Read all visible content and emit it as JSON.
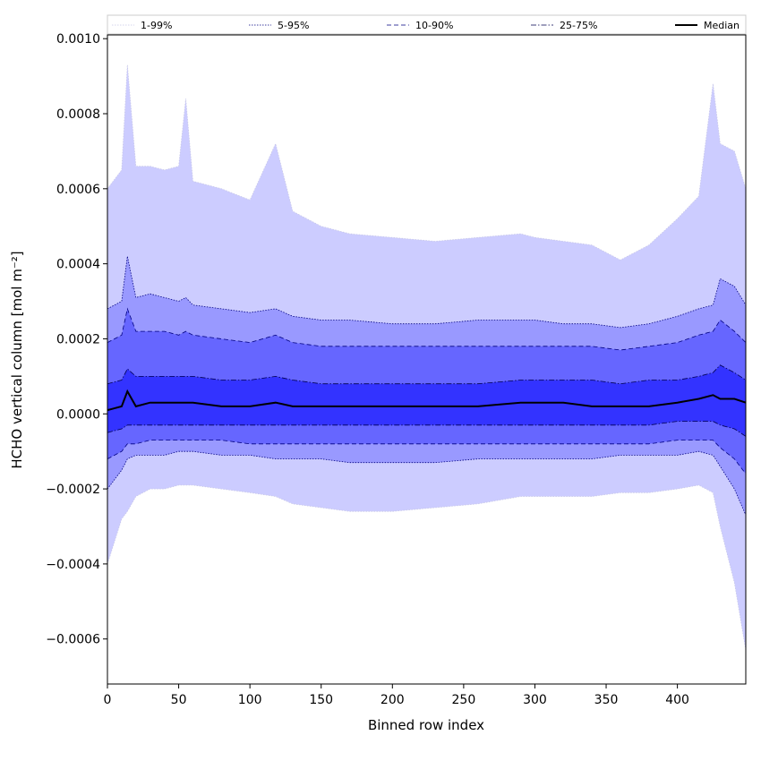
{
  "chart_data": {
    "type": "area",
    "xlabel": "Binned row index",
    "ylabel": "HCHO vertical column [mol m⁻²]",
    "xlim": [
      0,
      448
    ],
    "ylim": [
      -0.00072,
      0.00101
    ],
    "xticks": [
      0,
      50,
      100,
      150,
      200,
      250,
      300,
      350,
      400
    ],
    "xtick_labels": [
      "0",
      "50",
      "100",
      "150",
      "200",
      "250",
      "300",
      "350",
      "400"
    ],
    "yticks": [
      -0.0006,
      -0.0004,
      -0.0002,
      0.0,
      0.0002,
      0.0004,
      0.0006,
      0.0008,
      0.001
    ],
    "ytick_labels": [
      "−0.0006",
      "−0.0004",
      "−0.0002",
      "0.0000",
      "0.0002",
      "0.0004",
      "0.0006",
      "0.0008",
      "0.0010"
    ],
    "grid": false,
    "legend_position": "top, above plot, single row",
    "x": [
      0,
      10,
      14,
      20,
      30,
      40,
      50,
      55,
      60,
      80,
      100,
      118,
      130,
      150,
      170,
      200,
      230,
      260,
      290,
      300,
      320,
      340,
      360,
      380,
      400,
      415,
      425,
      430,
      440,
      448
    ],
    "bands": [
      {
        "name": "1-99%",
        "color": "#ccccff",
        "line_style": "dotted",
        "line_color": "#c8c8e8",
        "lower": [
          -0.0004,
          -0.00028,
          -0.00026,
          -0.00022,
          -0.0002,
          -0.0002,
          -0.00019,
          -0.00019,
          -0.00019,
          -0.0002,
          -0.00021,
          -0.00022,
          -0.00024,
          -0.00025,
          -0.00026,
          -0.00026,
          -0.00025,
          -0.00024,
          -0.00022,
          -0.00022,
          -0.00022,
          -0.00022,
          -0.00021,
          -0.00021,
          -0.0002,
          -0.00019,
          -0.00021,
          -0.0003,
          -0.00045,
          -0.00063
        ],
        "upper": [
          0.0006,
          0.00065,
          0.00093,
          0.00066,
          0.00066,
          0.00065,
          0.00066,
          0.00084,
          0.00062,
          0.0006,
          0.00057,
          0.00072,
          0.00054,
          0.0005,
          0.00048,
          0.00047,
          0.00046,
          0.00047,
          0.00048,
          0.00047,
          0.00046,
          0.00045,
          0.00041,
          0.00045,
          0.00052,
          0.00058,
          0.00088,
          0.00072,
          0.0007,
          0.0006
        ]
      },
      {
        "name": "5-95%",
        "color": "#9999ff",
        "line_style": "dotted",
        "line_color": "#000080",
        "lower": [
          -0.0002,
          -0.00015,
          -0.00012,
          -0.00011,
          -0.00011,
          -0.00011,
          -0.0001,
          -0.0001,
          -0.0001,
          -0.00011,
          -0.00011,
          -0.00012,
          -0.00012,
          -0.00012,
          -0.00013,
          -0.00013,
          -0.00013,
          -0.00012,
          -0.00012,
          -0.00012,
          -0.00012,
          -0.00012,
          -0.00011,
          -0.00011,
          -0.00011,
          -0.0001,
          -0.00011,
          -0.00014,
          -0.0002,
          -0.00027
        ],
        "upper": [
          0.00028,
          0.0003,
          0.00042,
          0.00031,
          0.00032,
          0.00031,
          0.0003,
          0.00031,
          0.00029,
          0.00028,
          0.00027,
          0.00028,
          0.00026,
          0.00025,
          0.00025,
          0.00024,
          0.00024,
          0.00025,
          0.00025,
          0.00025,
          0.00024,
          0.00024,
          0.00023,
          0.00024,
          0.00026,
          0.00028,
          0.00029,
          0.00036,
          0.00034,
          0.00029
        ]
      },
      {
        "name": "10-90%",
        "color": "#6666ff",
        "line_style": "dashed",
        "line_color": "#000080",
        "lower": [
          -0.00012,
          -0.0001,
          -8e-05,
          -8e-05,
          -7e-05,
          -7e-05,
          -7e-05,
          -7e-05,
          -7e-05,
          -7e-05,
          -8e-05,
          -8e-05,
          -8e-05,
          -8e-05,
          -8e-05,
          -8e-05,
          -8e-05,
          -8e-05,
          -8e-05,
          -8e-05,
          -8e-05,
          -8e-05,
          -8e-05,
          -8e-05,
          -7e-05,
          -7e-05,
          -7e-05,
          -9e-05,
          -0.00012,
          -0.00016
        ],
        "upper": [
          0.00019,
          0.00021,
          0.00028,
          0.00022,
          0.00022,
          0.00022,
          0.00021,
          0.00022,
          0.00021,
          0.0002,
          0.00019,
          0.00021,
          0.00019,
          0.00018,
          0.00018,
          0.00018,
          0.00018,
          0.00018,
          0.00018,
          0.00018,
          0.00018,
          0.00018,
          0.00017,
          0.00018,
          0.00019,
          0.00021,
          0.00022,
          0.00025,
          0.00022,
          0.00019
        ]
      },
      {
        "name": "25-75%",
        "color": "#3333ff",
        "line_style": "dashdot",
        "line_color": "#000050",
        "lower": [
          -5e-05,
          -4e-05,
          -3e-05,
          -3e-05,
          -3e-05,
          -3e-05,
          -3e-05,
          -3e-05,
          -3e-05,
          -3e-05,
          -3e-05,
          -3e-05,
          -3e-05,
          -3e-05,
          -3e-05,
          -3e-05,
          -3e-05,
          -3e-05,
          -3e-05,
          -3e-05,
          -3e-05,
          -3e-05,
          -3e-05,
          -3e-05,
          -2e-05,
          -2e-05,
          -2e-05,
          -3e-05,
          -4e-05,
          -6e-05
        ],
        "upper": [
          8e-05,
          9e-05,
          0.00012,
          0.0001,
          0.0001,
          0.0001,
          0.0001,
          0.0001,
          0.0001,
          9e-05,
          9e-05,
          0.0001,
          9e-05,
          8e-05,
          8e-05,
          8e-05,
          8e-05,
          8e-05,
          9e-05,
          9e-05,
          9e-05,
          9e-05,
          8e-05,
          9e-05,
          9e-05,
          0.0001,
          0.00011,
          0.00013,
          0.00011,
          9e-05
        ]
      }
    ],
    "median": {
      "name": "Median",
      "color": "#000000",
      "values": [
        1e-05,
        2e-05,
        6e-05,
        2e-05,
        3e-05,
        3e-05,
        3e-05,
        3e-05,
        3e-05,
        2e-05,
        2e-05,
        3e-05,
        2e-05,
        2e-05,
        2e-05,
        2e-05,
        2e-05,
        2e-05,
        3e-05,
        3e-05,
        3e-05,
        2e-05,
        2e-05,
        2e-05,
        3e-05,
        4e-05,
        5e-05,
        4e-05,
        4e-05,
        3e-05
      ]
    }
  }
}
